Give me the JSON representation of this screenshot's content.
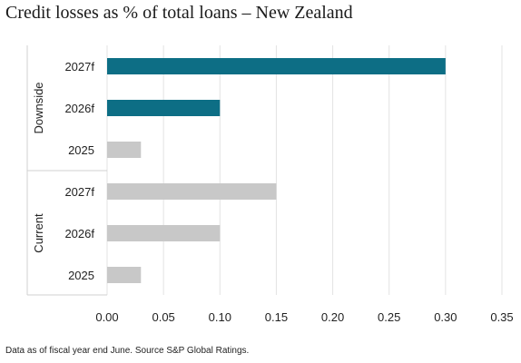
{
  "chart_data": {
    "type": "bar",
    "orientation": "horizontal",
    "title": "Credit losses as % of total loans – New Zealand",
    "footnote": "Data as of fiscal year end June. Source S&P Global Ratings.",
    "groups": [
      {
        "name": "Downside",
        "categories": [
          "2027f",
          "2026f",
          "2025"
        ],
        "values": [
          0.3,
          0.1,
          0.03
        ],
        "colors": [
          "#0d6e85",
          "#0d6e85",
          "#c8c8c8"
        ]
      },
      {
        "name": "Current",
        "categories": [
          "2027f",
          "2026f",
          "2025"
        ],
        "values": [
          0.15,
          0.1,
          0.03
        ],
        "colors": [
          "#c8c8c8",
          "#c8c8c8",
          "#c8c8c8"
        ]
      }
    ],
    "xlim": [
      0,
      0.35
    ],
    "xticks": [
      "0.00",
      "0.05",
      "0.10",
      "0.15",
      "0.20",
      "0.25",
      "0.30",
      "0.35"
    ],
    "grid": true,
    "legend": "none"
  }
}
